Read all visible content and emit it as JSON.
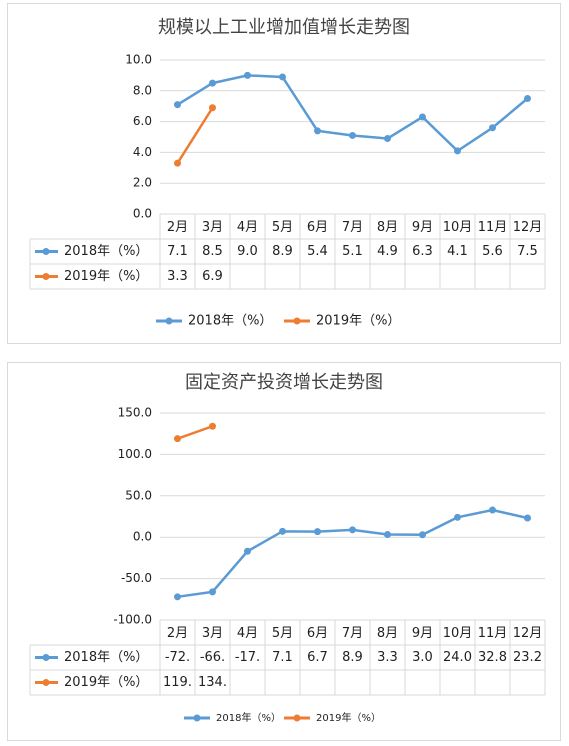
{
  "chart_data": [
    {
      "type": "line",
      "title": "规模以上工业增加值增长走势图",
      "categories": [
        "2月",
        "3月",
        "4月",
        "5月",
        "6月",
        "7月",
        "8月",
        "9月",
        "10月",
        "11月",
        "12月"
      ],
      "series": [
        {
          "name": "2018年（%）",
          "color": "#5b9bd5",
          "values": [
            7.1,
            8.5,
            9.0,
            8.9,
            5.4,
            5.1,
            4.9,
            6.3,
            4.1,
            5.6,
            7.5
          ],
          "value_labels": [
            "7.1",
            "8.5",
            "9.0",
            "8.9",
            "5.4",
            "5.1",
            "4.9",
            "6.3",
            "4.1",
            "5.6",
            "7.5"
          ]
        },
        {
          "name": "2019年（%）",
          "color": "#ed7d31",
          "values": [
            3.3,
            6.9,
            null,
            null,
            null,
            null,
            null,
            null,
            null,
            null,
            null
          ],
          "value_labels": [
            "3.3",
            "6.9",
            null,
            null,
            null,
            null,
            null,
            null,
            null,
            null,
            null
          ]
        }
      ],
      "ylim": [
        0,
        10
      ],
      "yticks": [
        {
          "value": 0,
          "label": "0.0"
        },
        {
          "value": 2,
          "label": "2.0"
        },
        {
          "value": 4,
          "label": "4.0"
        },
        {
          "value": 6,
          "label": "6.0"
        },
        {
          "value": 8,
          "label": "8.0"
        },
        {
          "value": 10,
          "label": "10.0"
        }
      ],
      "grid": true,
      "legend": "bottom"
    },
    {
      "type": "line",
      "title": "固定资产投资增长走势图",
      "categories": [
        "2月",
        "3月",
        "4月",
        "5月",
        "6月",
        "7月",
        "8月",
        "9月",
        "10月",
        "11月",
        "12月"
      ],
      "series": [
        {
          "name": "2018年（%）",
          "color": "#5b9bd5",
          "values": [
            -72,
            -66,
            -17,
            7.1,
            6.7,
            8.9,
            3.3,
            3.0,
            24.0,
            32.8,
            23.2
          ],
          "value_labels": [
            "-72.",
            "-66.",
            "-17.",
            "7.1",
            "6.7",
            "8.9",
            "3.3",
            "3.0",
            "24.0",
            "32.8",
            "23.2"
          ]
        },
        {
          "name": "2019年（%）",
          "color": "#ed7d31",
          "values": [
            119,
            134,
            null,
            null,
            null,
            null,
            null,
            null,
            null,
            null,
            null
          ],
          "value_labels": [
            "119.",
            "134.",
            null,
            null,
            null,
            null,
            null,
            null,
            null,
            null,
            null
          ]
        }
      ],
      "ylim": [
        -100,
        150
      ],
      "yticks": [
        {
          "value": -100,
          "label": "-100.0"
        },
        {
          "value": -50,
          "label": "-50.0"
        },
        {
          "value": 0,
          "label": "0.0"
        },
        {
          "value": 50,
          "label": "50.0"
        },
        {
          "value": 100,
          "label": "100.0"
        },
        {
          "value": 150,
          "label": "150.0"
        }
      ],
      "grid": true,
      "legend": "bottom"
    }
  ]
}
